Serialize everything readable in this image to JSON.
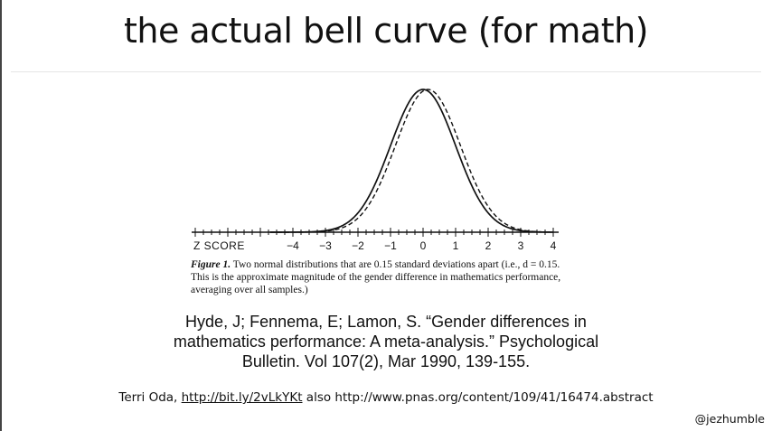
{
  "slide": {
    "title": "the actual bell curve (for math)",
    "handle": "@jezhumble"
  },
  "caption": {
    "figure_label": "Figure 1.",
    "text": "Two normal distributions that are 0.15 standard deviations apart (i.e., d = 0.15. This is the approximate magnitude of the gender difference in mathematics performance, averaging over all samples.)"
  },
  "citation": {
    "line1": "Hyde, J; Fennema, E; Lamon, S. “Gender differences in",
    "line2": "mathematics performance: A meta-analysis.” Psychological",
    "line3": "Bulletin. Vol 107(2), Mar 1990, 139-155."
  },
  "credits": {
    "prefix": "Terri Oda, ",
    "link_text": "http://bit.ly/2vLkYKt",
    "middle": " also ",
    "url2": "http://www.pnas.org/content/109/41/16474.abstract"
  },
  "chart_data": {
    "type": "line",
    "xlabel": "Z SCORE",
    "xlim": [
      -4,
      4
    ],
    "x_ticks": [
      -4,
      -3,
      -2,
      -1,
      0,
      1,
      2,
      3,
      4
    ],
    "x_tick_labels": [
      "−4",
      "−3",
      "−2",
      "−1",
      "0",
      "1",
      "2",
      "3",
      "4"
    ],
    "series": [
      {
        "style": "solid",
        "distribution": "normal",
        "mean": 0,
        "sd": 1
      },
      {
        "style": "dashed",
        "distribution": "normal",
        "mean": 0.15,
        "sd": 1
      }
    ],
    "grid": false,
    "legend": "none"
  }
}
